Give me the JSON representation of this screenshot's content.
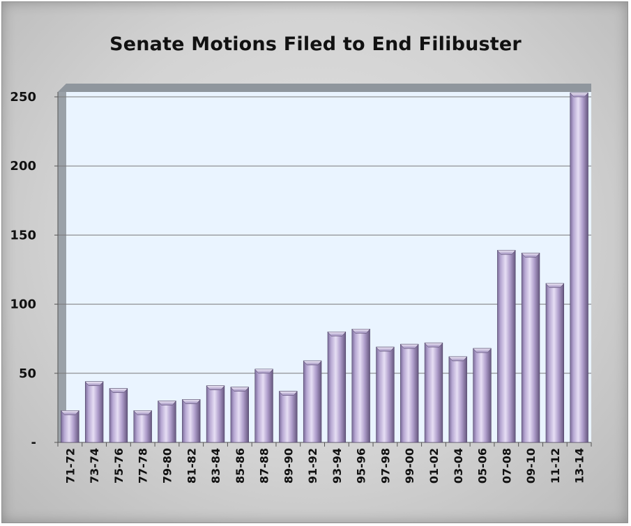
{
  "chart_data": {
    "type": "bar",
    "title": "Senate Motions Filed to End Filibuster",
    "xlabel": "",
    "ylabel": "",
    "categories": [
      "71-72",
      "73-74",
      "75-76",
      "77-78",
      "79-80",
      "81-82",
      "83-84",
      "85-86",
      "87-88",
      "89-90",
      "91-92",
      "93-94",
      "95-96",
      "97-98",
      "99-00",
      "01-02",
      "03-04",
      "05-06",
      "07-08",
      "09-10",
      "11-12",
      "13-14"
    ],
    "values": [
      23,
      44,
      39,
      23,
      30,
      31,
      41,
      40,
      53,
      37,
      59,
      80,
      82,
      69,
      71,
      72,
      62,
      68,
      139,
      137,
      115,
      253
    ],
    "ylim": [
      0,
      250
    ],
    "yticks": [
      0,
      50,
      100,
      150,
      200,
      250
    ],
    "ytick_labels": [
      "-",
      "50",
      "100",
      "150",
      "200",
      "250"
    ],
    "grid": true,
    "legend": "none",
    "colors": {
      "bar_light": "#e4dcf2",
      "bar_mid": "#b3a3cf",
      "bar_dark": "#6d5e8c",
      "plot_background": "#eaf4ff",
      "gridline": "#7a7a7a"
    }
  }
}
